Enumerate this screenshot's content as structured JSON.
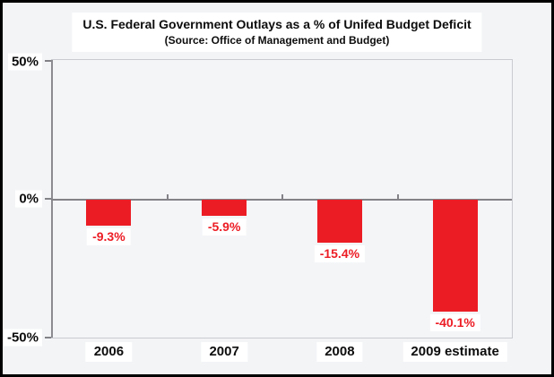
{
  "chart_data": {
    "type": "bar",
    "title": "U.S. Federal Government Outlays as a % of Unifed Budget Deficit",
    "subtitle": "(Source: Office of Management and Budget)",
    "categories": [
      "2006",
      "2007",
      "2008",
      "2009 estimate"
    ],
    "values": [
      -9.3,
      -5.9,
      -15.4,
      -40.1
    ],
    "value_labels": [
      "-9.3%",
      "-5.9%",
      "-15.4%",
      "-40.1%"
    ],
    "y_tick_labels": [
      "50%",
      "0%",
      "-50%"
    ],
    "ylim": [
      -50,
      50
    ],
    "grid": false,
    "legend": false,
    "colors": {
      "bar": "#ec1c24",
      "value_label": "#ec1c24",
      "axis_line": "#828287",
      "plot_background": "#f4f5f7",
      "figure_border": "#000000"
    }
  }
}
